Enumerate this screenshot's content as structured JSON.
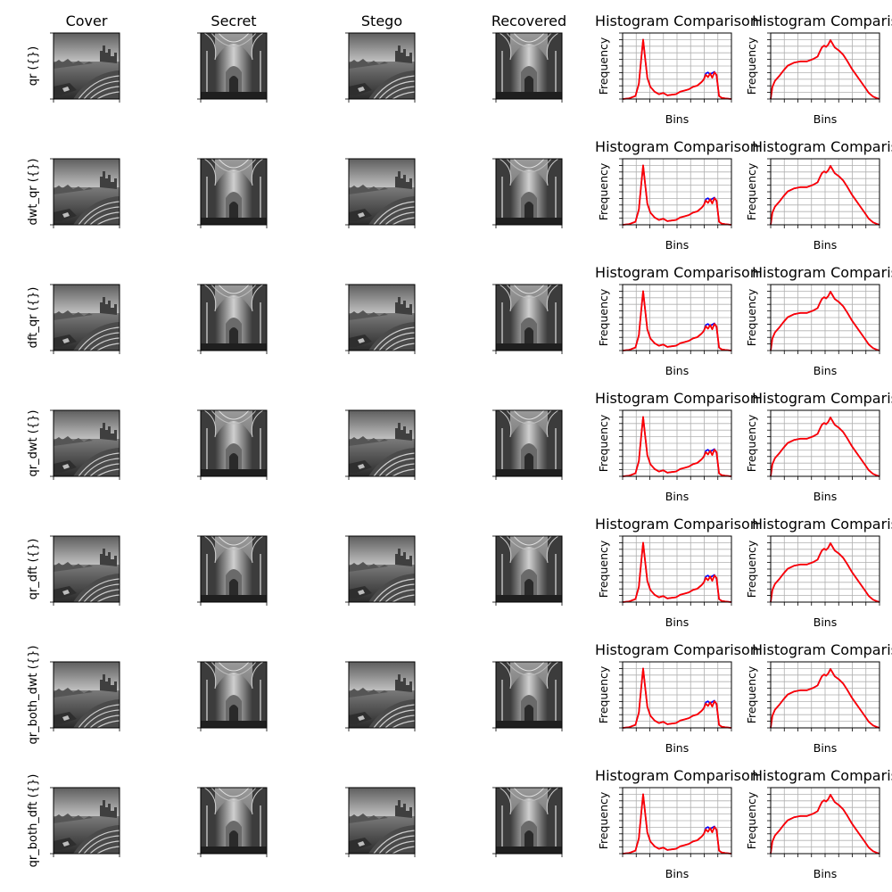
{
  "figure": {
    "column_titles": [
      "Cover",
      "Secret",
      "Stego",
      "Recovered"
    ],
    "histogram_title": "Histogram Comparison",
    "histogram_title_clipped": "Histogram Comparis",
    "row_labels": [
      "qr ({})",
      "dwt_qr ({})",
      "dft_qr ({})",
      "qr_dwt ({})",
      "qr_dft ({})",
      "qr_both_dwt ({})",
      "qr_both_dft ({})"
    ],
    "colors": {
      "original": "#0000ff",
      "stego": "#ff0000",
      "grid": "#b0b0b0"
    }
  },
  "chart_data": [
    {
      "type": "line",
      "panel": "histogram-cover-vs-stego",
      "title": "Histogram Comparison",
      "xlabel": "Bins",
      "ylabel": "Frequency",
      "xlim": [
        0,
        255
      ],
      "ylim": [
        0,
        1
      ],
      "grid": true,
      "series": [
        {
          "color": "#0000ff",
          "x": [
            0,
            15,
            30,
            38,
            44,
            48,
            52,
            58,
            65,
            75,
            85,
            95,
            105,
            115,
            125,
            135,
            145,
            155,
            165,
            175,
            185,
            190,
            195,
            200,
            205,
            210,
            215,
            220,
            226,
            232,
            240,
            255
          ],
          "y": [
            0.0,
            0.01,
            0.05,
            0.25,
            0.7,
            0.98,
            0.72,
            0.35,
            0.2,
            0.12,
            0.08,
            0.1,
            0.06,
            0.07,
            0.08,
            0.12,
            0.14,
            0.16,
            0.2,
            0.22,
            0.28,
            0.32,
            0.42,
            0.44,
            0.4,
            0.43,
            0.45,
            0.38,
            0.05,
            0.02,
            0.01,
            0.0
          ]
        },
        {
          "color": "#ff0000",
          "x": [
            0,
            15,
            30,
            38,
            44,
            48,
            52,
            58,
            65,
            75,
            85,
            95,
            105,
            115,
            125,
            135,
            145,
            155,
            165,
            175,
            185,
            190,
            195,
            200,
            205,
            210,
            215,
            220,
            226,
            232,
            240,
            255
          ],
          "y": [
            0.0,
            0.01,
            0.05,
            0.25,
            0.7,
            0.98,
            0.72,
            0.35,
            0.2,
            0.12,
            0.08,
            0.1,
            0.06,
            0.07,
            0.08,
            0.12,
            0.14,
            0.16,
            0.2,
            0.22,
            0.28,
            0.32,
            0.4,
            0.36,
            0.42,
            0.35,
            0.44,
            0.4,
            0.05,
            0.02,
            0.01,
            0.0
          ]
        }
      ]
    },
    {
      "type": "line",
      "panel": "histogram-secret-vs-recovered",
      "title": "Histogram Comparison",
      "xlabel": "Bins",
      "ylabel": "Frequency",
      "xlim": [
        0,
        255
      ],
      "ylim": [
        0,
        1
      ],
      "grid": true,
      "series": [
        {
          "color": "#0000ff",
          "x": [
            0,
            4,
            10,
            20,
            30,
            40,
            55,
            70,
            85,
            100,
            110,
            115,
            120,
            125,
            130,
            135,
            140,
            150,
            160,
            170,
            180,
            190,
            200,
            210,
            220,
            230,
            240,
            250,
            255
          ],
          "y": [
            0.0,
            0.2,
            0.3,
            0.38,
            0.47,
            0.55,
            0.6,
            0.62,
            0.62,
            0.66,
            0.7,
            0.78,
            0.85,
            0.88,
            0.86,
            0.9,
            0.97,
            0.85,
            0.8,
            0.73,
            0.62,
            0.5,
            0.4,
            0.3,
            0.2,
            0.1,
            0.04,
            0.01,
            0.0
          ]
        },
        {
          "color": "#ff0000",
          "x": [
            0,
            4,
            10,
            20,
            30,
            40,
            55,
            70,
            85,
            100,
            110,
            115,
            120,
            125,
            130,
            135,
            140,
            150,
            160,
            170,
            180,
            190,
            200,
            210,
            220,
            230,
            240,
            250,
            255
          ],
          "y": [
            0.0,
            0.2,
            0.3,
            0.38,
            0.47,
            0.55,
            0.6,
            0.62,
            0.62,
            0.66,
            0.7,
            0.78,
            0.85,
            0.88,
            0.86,
            0.9,
            0.97,
            0.85,
            0.8,
            0.73,
            0.62,
            0.5,
            0.4,
            0.3,
            0.2,
            0.1,
            0.04,
            0.01,
            0.0
          ]
        }
      ]
    }
  ]
}
